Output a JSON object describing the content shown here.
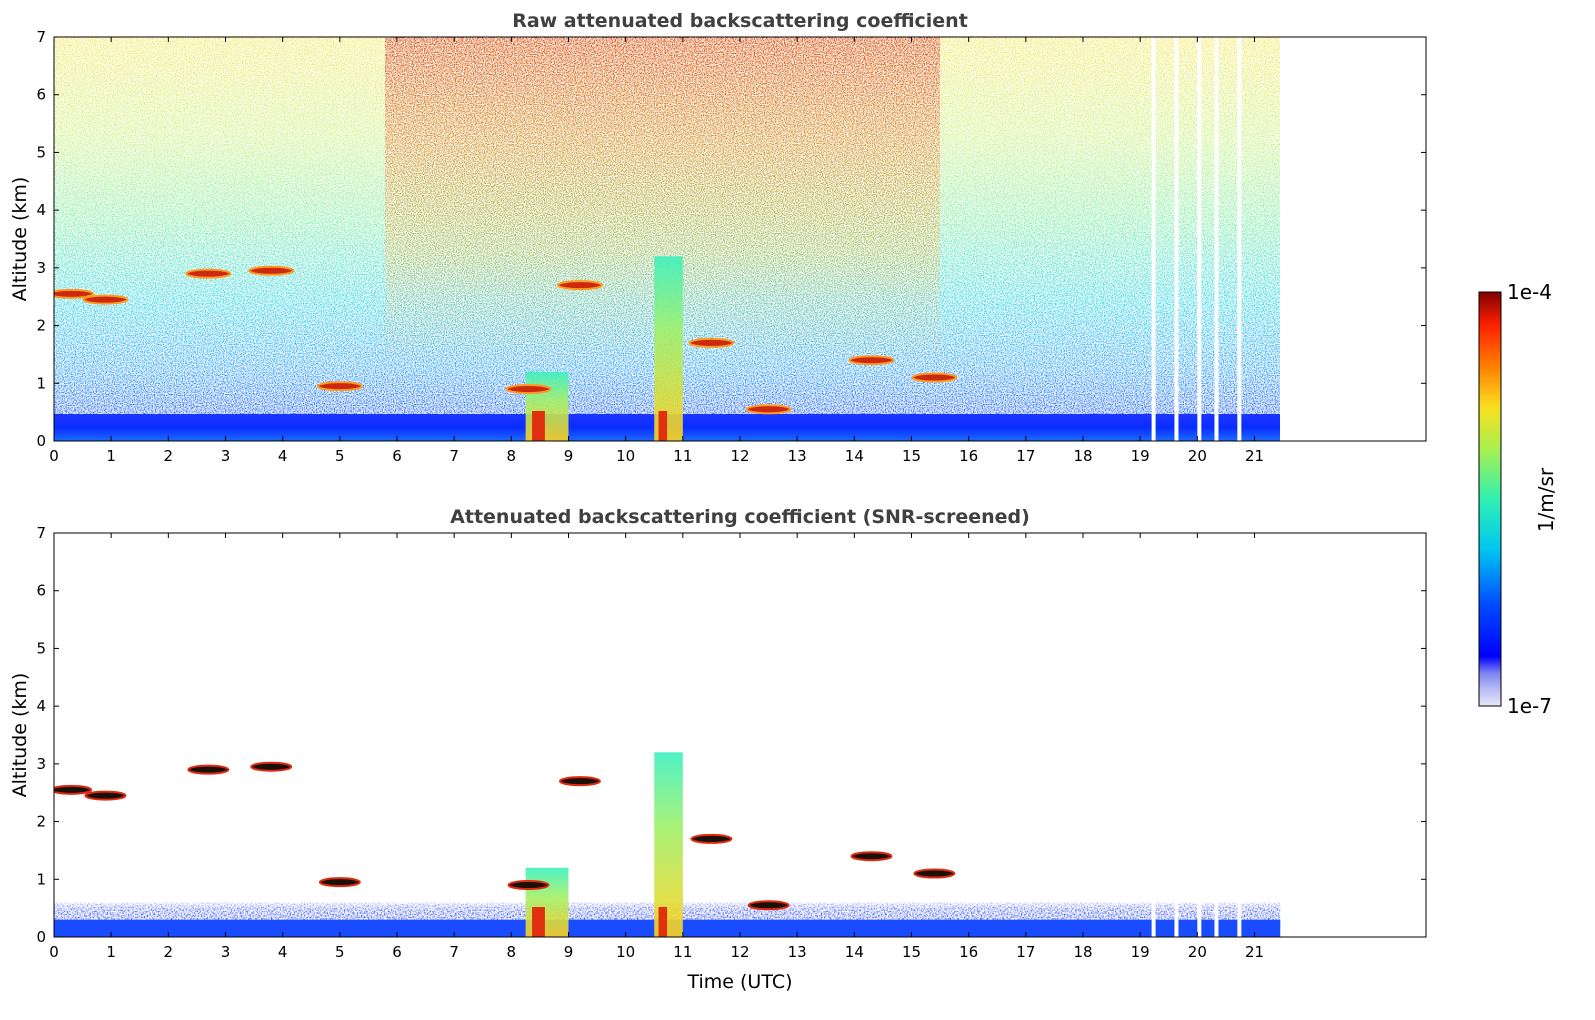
{
  "chart_data": [
    {
      "type": "heatmap",
      "title": "Raw attenuated backscattering coefficient",
      "xlabel": "",
      "ylabel": "Altitude (km)",
      "xlim": [
        0,
        24
      ],
      "ylim": [
        0,
        7
      ],
      "x_ticks": [
        "0",
        "1",
        "2",
        "3",
        "4",
        "5",
        "6",
        "7",
        "8",
        "9",
        "10",
        "11",
        "12",
        "13",
        "14",
        "15",
        "16",
        "17",
        "18",
        "19",
        "20",
        "21"
      ],
      "y_ticks": [
        "0",
        "1",
        "2",
        "3",
        "4",
        "5",
        "6",
        "7"
      ],
      "grid": false,
      "data_end_hour": 21.45,
      "gaps_hours": [
        19.2,
        19.6,
        20.0,
        20.3,
        20.7
      ],
      "boundary_layer_top_km": 0.45,
      "aerosol_layers": [
        {
          "t": 0.3,
          "alt_km": 2.55
        },
        {
          "t": 0.9,
          "alt_km": 2.45
        },
        {
          "t": 2.7,
          "alt_km": 2.9
        },
        {
          "t": 3.8,
          "alt_km": 2.95
        },
        {
          "t": 5.0,
          "alt_km": 0.95
        },
        {
          "t": 8.3,
          "alt_km": 0.9
        },
        {
          "t": 9.2,
          "alt_km": 2.7
        },
        {
          "t": 11.5,
          "alt_km": 1.7
        },
        {
          "t": 12.5,
          "alt_km": 0.55
        },
        {
          "t": 14.3,
          "alt_km": 1.4
        },
        {
          "t": 15.4,
          "alt_km": 1.1
        }
      ],
      "rain_columns": [
        {
          "t_start": 8.25,
          "t_end": 9.0,
          "top_km": 1.2
        },
        {
          "t_start": 10.5,
          "t_end": 11.0,
          "top_km": 3.2
        }
      ]
    },
    {
      "type": "heatmap",
      "title": "Attenuated backscattering coefficient (SNR-screened)",
      "xlabel": "Time (UTC)",
      "ylabel": "Altitude (km)",
      "xlim": [
        0,
        24
      ],
      "ylim": [
        0,
        7
      ],
      "x_ticks": [
        "0",
        "1",
        "2",
        "3",
        "4",
        "5",
        "6",
        "7",
        "8",
        "9",
        "10",
        "11",
        "12",
        "13",
        "14",
        "15",
        "16",
        "17",
        "18",
        "19",
        "20",
        "21"
      ],
      "y_ticks": [
        "0",
        "1",
        "2",
        "3",
        "4",
        "5",
        "6",
        "7"
      ],
      "grid": false,
      "data_end_hour": 21.45,
      "gaps_hours": [
        19.2,
        19.6,
        20.0,
        20.3,
        20.7
      ],
      "boundary_layer_top_km": 0.6
    }
  ],
  "colorbar": {
    "max_label": "1e-4",
    "min_label": "1e-7",
    "unit_label": "1/m/sr",
    "colormap": "jet"
  }
}
